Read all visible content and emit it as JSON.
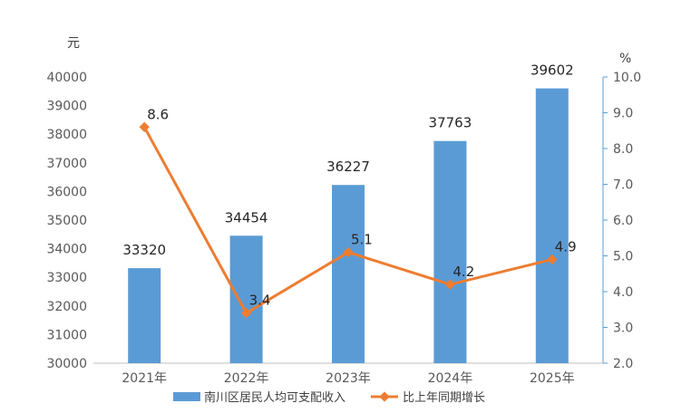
{
  "chart_data": {
    "type": "bar",
    "categories": [
      "2021年",
      "2022年",
      "2023年",
      "2024年",
      "2025年"
    ],
    "series": [
      {
        "name": "南川区居民人均可支配收入",
        "type": "bar",
        "axis": "left",
        "values": [
          33320,
          34454,
          36227,
          37763,
          39602
        ],
        "labels": [
          "33320",
          "34454",
          "36227",
          "37763",
          "39602"
        ],
        "color": "#5B9BD5"
      },
      {
        "name": "比上年同期增长",
        "type": "line",
        "axis": "right",
        "values": [
          8.6,
          3.4,
          5.1,
          4.2,
          4.9
        ],
        "labels": [
          "8.6",
          "3.4",
          "5.1",
          "4.2",
          "4.9"
        ],
        "color": "#ED7D31"
      }
    ],
    "y_left": {
      "unit": "元",
      "range": [
        30000,
        40000
      ],
      "ticks": [
        "30000",
        "31000",
        "32000",
        "33000",
        "34000",
        "35000",
        "36000",
        "37000",
        "38000",
        "39000",
        "40000"
      ]
    },
    "y_right": {
      "unit": "%",
      "range": [
        2.0,
        10.0
      ],
      "ticks": [
        "2.0",
        "3.0",
        "4.0",
        "5.0",
        "6.0",
        "7.0",
        "8.0",
        "9.0",
        "10.0"
      ]
    },
    "grid": false,
    "legend_position": "bottom"
  }
}
